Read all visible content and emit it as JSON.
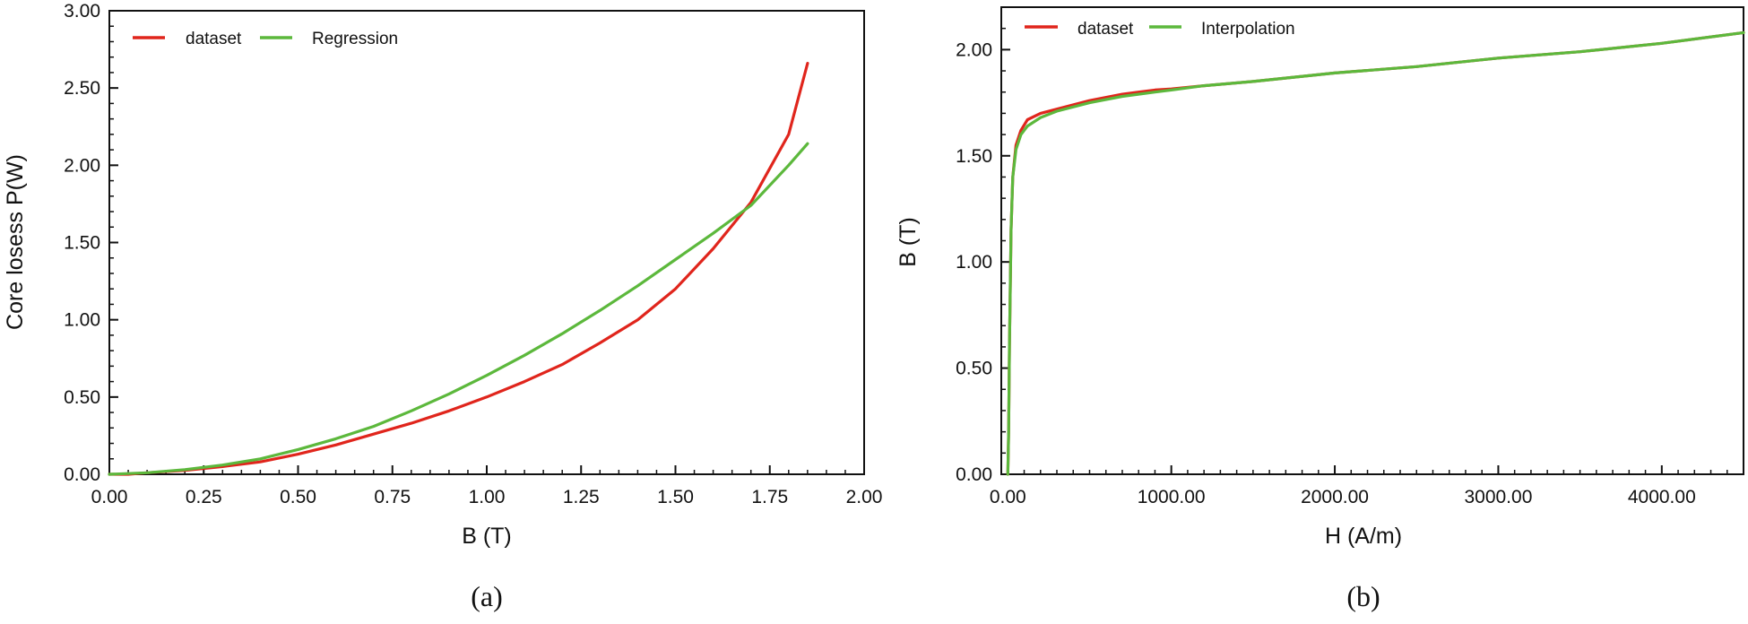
{
  "colors": {
    "dataset": "#e0251c",
    "fit": "#5cb83c",
    "axis": "#111111"
  },
  "chart_data": [
    {
      "type": "line",
      "caption": "(a)",
      "xlabel": "B (T)",
      "ylabel": "Core losess P(W)",
      "xlim": [
        0,
        2.0
      ],
      "ylim": [
        0,
        3.0
      ],
      "x_ticks": [
        "0.00",
        "0.25",
        "0.50",
        "0.75",
        "1.00",
        "1.25",
        "1.50",
        "1.75",
        "2.00"
      ],
      "y_ticks": [
        "0.00",
        "0.50",
        "1.00",
        "1.50",
        "2.00",
        "2.50",
        "3.00"
      ],
      "legend_position": "top-left",
      "grid": false,
      "series": [
        {
          "name": "dataset",
          "color": "#e0251c",
          "points": [
            [
              0,
              0
            ],
            [
              0.05,
              0
            ],
            [
              0.1,
              0.01
            ],
            [
              0.2,
              0.025
            ],
            [
              0.3,
              0.05
            ],
            [
              0.4,
              0.08
            ],
            [
              0.5,
              0.13
            ],
            [
              0.6,
              0.19
            ],
            [
              0.7,
              0.26
            ],
            [
              0.8,
              0.33
            ],
            [
              0.9,
              0.41
            ],
            [
              1.0,
              0.5
            ],
            [
              1.1,
              0.6
            ],
            [
              1.2,
              0.71
            ],
            [
              1.3,
              0.85
            ],
            [
              1.4,
              1.0
            ],
            [
              1.5,
              1.2
            ],
            [
              1.6,
              1.46
            ],
            [
              1.7,
              1.76
            ],
            [
              1.8,
              2.2
            ],
            [
              1.85,
              2.66
            ]
          ]
        },
        {
          "name": "Regression",
          "color": "#5cb83c",
          "points": [
            [
              0,
              0
            ],
            [
              0.1,
              0.01
            ],
            [
              0.2,
              0.03
            ],
            [
              0.3,
              0.06
            ],
            [
              0.4,
              0.1
            ],
            [
              0.5,
              0.16
            ],
            [
              0.6,
              0.23
            ],
            [
              0.7,
              0.31
            ],
            [
              0.8,
              0.41
            ],
            [
              0.9,
              0.52
            ],
            [
              1.0,
              0.64
            ],
            [
              1.1,
              0.77
            ],
            [
              1.2,
              0.91
            ],
            [
              1.3,
              1.06
            ],
            [
              1.4,
              1.22
            ],
            [
              1.5,
              1.39
            ],
            [
              1.6,
              1.56
            ],
            [
              1.7,
              1.74
            ],
            [
              1.8,
              2.0
            ],
            [
              1.85,
              2.14
            ]
          ]
        }
      ]
    },
    {
      "type": "line",
      "caption": "(b)",
      "xlabel": "H (A/m)",
      "ylabel": "B (T)",
      "xlim": [
        -40,
        4500
      ],
      "ylim": [
        0,
        2.2
      ],
      "x_ticks": [
        "0.00",
        "1000.00",
        "2000.00",
        "3000.00",
        "4000.00"
      ],
      "y_ticks": [
        "0.00",
        "0.50",
        "1.00",
        "1.50",
        "2.00"
      ],
      "legend_position": "top-left",
      "grid": false,
      "series": [
        {
          "name": "dataset",
          "color": "#e0251c",
          "points": [
            [
              0,
              0
            ],
            [
              5,
              0.2
            ],
            [
              10,
              0.6
            ],
            [
              20,
              1.15
            ],
            [
              30,
              1.4
            ],
            [
              50,
              1.55
            ],
            [
              80,
              1.62
            ],
            [
              120,
              1.67
            ],
            [
              200,
              1.7
            ],
            [
              300,
              1.72
            ],
            [
              500,
              1.76
            ],
            [
              700,
              1.79
            ],
            [
              900,
              1.81
            ],
            [
              1000,
              1.815
            ],
            [
              1200,
              1.83
            ],
            [
              1500,
              1.85
            ],
            [
              2000,
              1.89
            ],
            [
              2500,
              1.92
            ],
            [
              3000,
              1.96
            ],
            [
              3500,
              1.99
            ],
            [
              4000,
              2.03
            ],
            [
              4500,
              2.08
            ]
          ]
        },
        {
          "name": "Interpolation",
          "color": "#5cb83c",
          "points": [
            [
              0,
              0
            ],
            [
              5,
              0.2
            ],
            [
              10,
              0.6
            ],
            [
              20,
              1.15
            ],
            [
              30,
              1.4
            ],
            [
              50,
              1.53
            ],
            [
              80,
              1.6
            ],
            [
              120,
              1.64
            ],
            [
              200,
              1.68
            ],
            [
              300,
              1.71
            ],
            [
              500,
              1.75
            ],
            [
              700,
              1.78
            ],
            [
              900,
              1.8
            ],
            [
              1000,
              1.81
            ],
            [
              1200,
              1.83
            ],
            [
              1500,
              1.85
            ],
            [
              2000,
              1.89
            ],
            [
              2500,
              1.92
            ],
            [
              3000,
              1.96
            ],
            [
              3500,
              1.99
            ],
            [
              4000,
              2.03
            ],
            [
              4500,
              2.08
            ]
          ]
        }
      ]
    }
  ]
}
